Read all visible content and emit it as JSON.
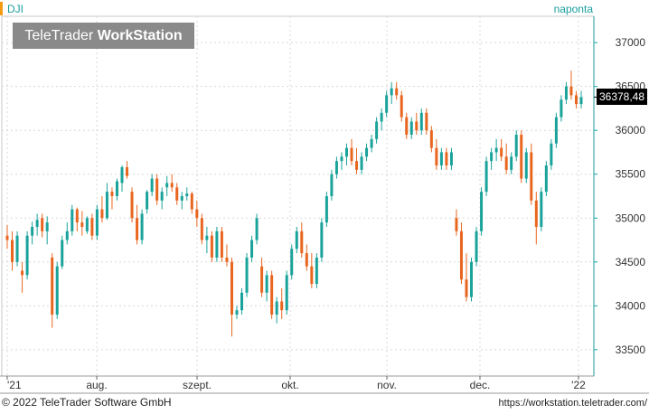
{
  "header": {
    "symbol": "DJI",
    "interval": "naponta",
    "brand_light": "TeleTrader",
    "brand_bold": "WorkStation"
  },
  "footer": {
    "copyright": "© 2022 TeleTrader Software GmbH",
    "url": "https://workstation.teletrader.com/"
  },
  "last_price": {
    "label": "36378,48",
    "value": 36378.48
  },
  "colors": {
    "up": "#1aa39a",
    "down": "#e8661f",
    "axis": "#1a9e9e",
    "grid": "#d8d8d8"
  },
  "chart_data": {
    "type": "candlestick",
    "title": "",
    "xlabel": "",
    "ylabel": "",
    "ylim": [
      33200,
      37300
    ],
    "y_ticks": [
      33500,
      34000,
      34500,
      35000,
      35500,
      36000,
      36500,
      37000
    ],
    "y_tick_labels": [
      "33500",
      "34000",
      "34500",
      "35000",
      "35500",
      "36000",
      "36500",
      "37000"
    ],
    "x_ticks": [
      "'21",
      "aug.",
      "szept.",
      "okt.",
      "nov.",
      "dec.",
      "'22"
    ],
    "grid": true,
    "series": [
      {
        "candles": [
          [
            34800,
            34920,
            34650,
            34750
          ],
          [
            34750,
            34850,
            34400,
            34500
          ],
          [
            34500,
            34850,
            34450,
            34800
          ],
          [
            34400,
            34500,
            34150,
            34350
          ],
          [
            34350,
            34850,
            34300,
            34800
          ],
          [
            34800,
            34960,
            34700,
            34900
          ],
          [
            34900,
            35050,
            34800,
            34980
          ],
          [
            35000,
            35050,
            34780,
            34850
          ],
          [
            34850,
            35020,
            34700,
            34950
          ],
          [
            34550,
            34600,
            33750,
            33900
          ],
          [
            33900,
            34500,
            33850,
            34450
          ],
          [
            34450,
            34800,
            34420,
            34750
          ],
          [
            34750,
            34950,
            34700,
            34850
          ],
          [
            34850,
            35150,
            34800,
            35100
          ],
          [
            35100,
            35120,
            34850,
            34950
          ],
          [
            34950,
            35080,
            34800,
            34900
          ],
          [
            34850,
            35020,
            34820,
            35000
          ],
          [
            35000,
            35050,
            34750,
            34800
          ],
          [
            34800,
            35150,
            34750,
            35100
          ],
          [
            35100,
            35250,
            34950,
            35000
          ],
          [
            35000,
            35400,
            34980,
            35300
          ],
          [
            35300,
            35350,
            35100,
            35250
          ],
          [
            35250,
            35450,
            35200,
            35420
          ],
          [
            35400,
            35600,
            35300,
            35580
          ],
          [
            35580,
            35650,
            35450,
            35480
          ],
          [
            35300,
            35350,
            34950,
            35000
          ],
          [
            35000,
            35150,
            34700,
            34750
          ],
          [
            34750,
            35100,
            34700,
            35050
          ],
          [
            35100,
            35320,
            35050,
            35300
          ],
          [
            35300,
            35500,
            35250,
            35450
          ],
          [
            35450,
            35500,
            35150,
            35200
          ],
          [
            35200,
            35350,
            35100,
            35300
          ],
          [
            35350,
            35480,
            35250,
            35400
          ],
          [
            35400,
            35500,
            35300,
            35350
          ],
          [
            35350,
            35400,
            35150,
            35200
          ],
          [
            35200,
            35300,
            35100,
            35250
          ],
          [
            35250,
            35350,
            35200,
            35280
          ],
          [
            35280,
            35300,
            35050,
            35100
          ],
          [
            35100,
            35200,
            34900,
            35000
          ],
          [
            35000,
            35050,
            34700,
            34750
          ],
          [
            34750,
            34900,
            34600,
            34800
          ],
          [
            34800,
            34850,
            34500,
            34550
          ],
          [
            34550,
            34900,
            34500,
            34850
          ],
          [
            34850,
            34900,
            34500,
            34550
          ],
          [
            34550,
            34700,
            34450,
            34500
          ],
          [
            34500,
            34550,
            33650,
            33900
          ],
          [
            33900,
            34000,
            33850,
            33950
          ],
          [
            33950,
            34200,
            33900,
            34150
          ],
          [
            34150,
            34600,
            34100,
            34550
          ],
          [
            34550,
            34800,
            34500,
            34750
          ],
          [
            34750,
            35050,
            34700,
            35000
          ],
          [
            34450,
            34550,
            34100,
            34150
          ],
          [
            34150,
            34400,
            34050,
            34350
          ],
          [
            34350,
            34400,
            33850,
            33900
          ],
          [
            33900,
            34100,
            33800,
            34050
          ],
          [
            34050,
            34200,
            33850,
            33950
          ],
          [
            33950,
            34400,
            33900,
            34350
          ],
          [
            34350,
            34700,
            34300,
            34650
          ],
          [
            34650,
            34900,
            34600,
            34850
          ],
          [
            34850,
            34950,
            34550,
            34600
          ],
          [
            34600,
            34700,
            34400,
            34450
          ],
          [
            34450,
            34600,
            34200,
            34250
          ],
          [
            34250,
            34600,
            34200,
            34550
          ],
          [
            34550,
            35000,
            34500,
            34950
          ],
          [
            34950,
            35300,
            34900,
            35250
          ],
          [
            35250,
            35550,
            35200,
            35500
          ],
          [
            35500,
            35700,
            35450,
            35650
          ],
          [
            35650,
            35750,
            35550,
            35700
          ],
          [
            35700,
            35850,
            35600,
            35800
          ],
          [
            35800,
            35900,
            35600,
            35650
          ],
          [
            35650,
            35800,
            35500,
            35550
          ],
          [
            35550,
            35750,
            35500,
            35700
          ],
          [
            35700,
            35850,
            35650,
            35800
          ],
          [
            35800,
            35950,
            35750,
            35900
          ],
          [
            35900,
            36150,
            35850,
            36100
          ],
          [
            36100,
            36250,
            36000,
            36200
          ],
          [
            36200,
            36450,
            36150,
            36400
          ],
          [
            36400,
            36550,
            36300,
            36480
          ],
          [
            36480,
            36550,
            36350,
            36400
          ],
          [
            36400,
            36450,
            36100,
            36150
          ],
          [
            36150,
            36200,
            35900,
            35950
          ],
          [
            35950,
            36150,
            35900,
            36100
          ],
          [
            36100,
            36200,
            35950,
            36000
          ],
          [
            36000,
            36250,
            35950,
            36200
          ],
          [
            36200,
            36250,
            35950,
            36000
          ],
          [
            36000,
            36050,
            35750,
            35800
          ],
          [
            35800,
            35900,
            35550,
            35600
          ],
          [
            35600,
            35800,
            35550,
            35750
          ],
          [
            35750,
            35800,
            35550,
            35600
          ],
          [
            35600,
            35800,
            35550,
            35750
          ],
          [
            35000,
            35100,
            34800,
            34850
          ],
          [
            34850,
            34950,
            34250,
            34300
          ],
          [
            34300,
            34600,
            34050,
            34100
          ],
          [
            34100,
            34550,
            34050,
            34500
          ],
          [
            34500,
            34900,
            34450,
            34850
          ],
          [
            34850,
            35350,
            34800,
            35300
          ],
          [
            35300,
            35700,
            35250,
            35650
          ],
          [
            35650,
            35800,
            35550,
            35750
          ],
          [
            35750,
            35900,
            35650,
            35800
          ],
          [
            35800,
            35900,
            35650,
            35700
          ],
          [
            35700,
            35850,
            35500,
            35550
          ],
          [
            35550,
            35750,
            35500,
            35700
          ],
          [
            35700,
            36000,
            35650,
            35950
          ],
          [
            35950,
            36000,
            35400,
            35450
          ],
          [
            35450,
            35800,
            35400,
            35750
          ],
          [
            35750,
            35850,
            35150,
            35200
          ],
          [
            35200,
            35300,
            34700,
            34900
          ],
          [
            34900,
            35350,
            34850,
            35300
          ],
          [
            35300,
            35650,
            35250,
            35600
          ],
          [
            35600,
            35900,
            35550,
            35850
          ],
          [
            35850,
            36200,
            35800,
            36150
          ],
          [
            36150,
            36400,
            36100,
            36350
          ],
          [
            36350,
            36550,
            36300,
            36500
          ],
          [
            36500,
            36680,
            36350,
            36400
          ],
          [
            36400,
            36450,
            36250,
            36300
          ],
          [
            36300,
            36450,
            36250,
            36378.48
          ]
        ]
      }
    ]
  }
}
